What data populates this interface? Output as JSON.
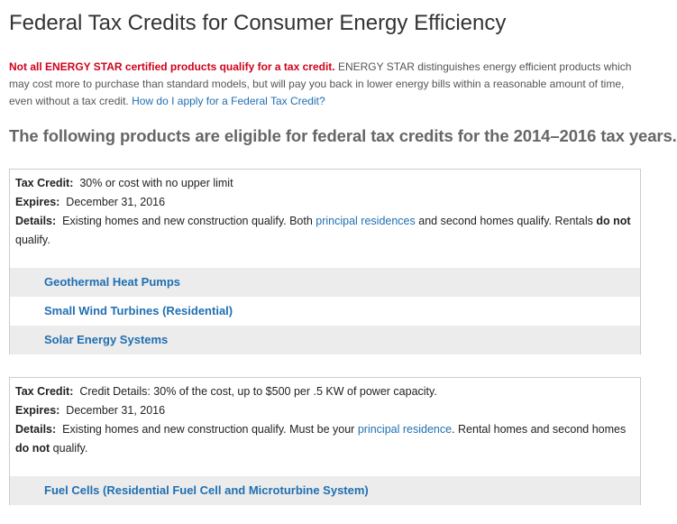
{
  "title": "Federal Tax Credits for Consumer Energy Efficiency",
  "intro": {
    "warning": "Not all ENERGY STAR certified products qualify for a tax credit.",
    "text": " ENERGY STAR distinguishes energy efficient products which  may cost more to purchase than standard models, but will pay you back in lower energy bills within a reasonable amount of time, even without a tax credit.  ",
    "link": "How do I apply for a Federal Tax Credit?"
  },
  "subtitle": "The following products are eligible for federal tax credits for the 2014–2016 tax years.",
  "sections": [
    {
      "tax_credit": {
        "label": "Tax Credit:",
        "text": "30% or cost with no upper limit"
      },
      "expires": {
        "label": "Expires:",
        "text": "December 31, 2016"
      },
      "details": [
        "Details:",
        "Existing homes and new construction qualify.  Both ",
        "principal residences",
        " and second homes qualify. Rentals ",
        "do not",
        " qualify."
      ],
      "products": [
        "Geothermal Heat Pumps",
        "Small Wind Turbines (Residential)",
        "Solar Energy Systems"
      ]
    },
    {
      "tax_credit": {
        "label": "Tax Credit:",
        "text": "Credit Details:  30% of the cost, up to $500 per .5 KW of power capacity."
      },
      "expires": {
        "label": "Expires:",
        "text": "December 31, 2016"
      },
      "details": [
        "Details:",
        "Existing homes and new construction qualify.  Must be your ",
        "principal residence",
        ".  Rental homes and second homes ",
        "do not",
        " qualify."
      ],
      "products": [
        "Fuel Cells (Residential Fuel Cell and Microturbine System)"
      ]
    }
  ]
}
